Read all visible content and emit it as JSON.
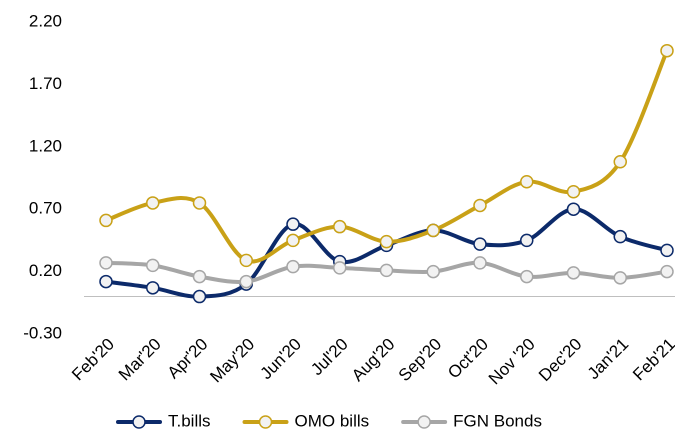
{
  "chart_data": {
    "type": "line",
    "categories": [
      "Feb'20",
      "Mar'20",
      "Apr'20",
      "May'20",
      "Jun'20",
      "Jul'20",
      "Aug'20",
      "Sep'20",
      "Oct'20",
      "Nov '20",
      "Dec'20",
      "Jan'21",
      "Feb'21"
    ],
    "series": [
      {
        "name": "T.bills",
        "color": "#0c2a6a",
        "values": [
          0.12,
          0.07,
          0.0,
          0.1,
          0.58,
          0.28,
          0.41,
          0.53,
          0.42,
          0.45,
          0.7,
          0.48,
          0.37
        ]
      },
      {
        "name": "OMO bills",
        "color": "#c9a117",
        "values": [
          0.61,
          0.75,
          0.75,
          0.29,
          0.45,
          0.56,
          0.44,
          0.53,
          0.73,
          0.92,
          0.84,
          1.08,
          1.97
        ]
      },
      {
        "name": "FGN Bonds",
        "color": "#a6a6a6",
        "values": [
          0.27,
          0.25,
          0.16,
          0.12,
          0.24,
          0.23,
          0.21,
          0.2,
          0.27,
          0.16,
          0.19,
          0.15,
          0.2
        ]
      }
    ],
    "ylim": [
      -0.3,
      2.2
    ],
    "yticks": [
      {
        "value": -0.3,
        "label": "-0.30"
      },
      {
        "value": 0.2,
        "label": "0.20"
      },
      {
        "value": 0.7,
        "label": "0.70"
      },
      {
        "value": 1.2,
        "label": "1.20"
      },
      {
        "value": 1.7,
        "label": "1.70"
      },
      {
        "value": 2.2,
        "label": "2.20"
      }
    ],
    "grid": false,
    "legend": "bottom"
  }
}
